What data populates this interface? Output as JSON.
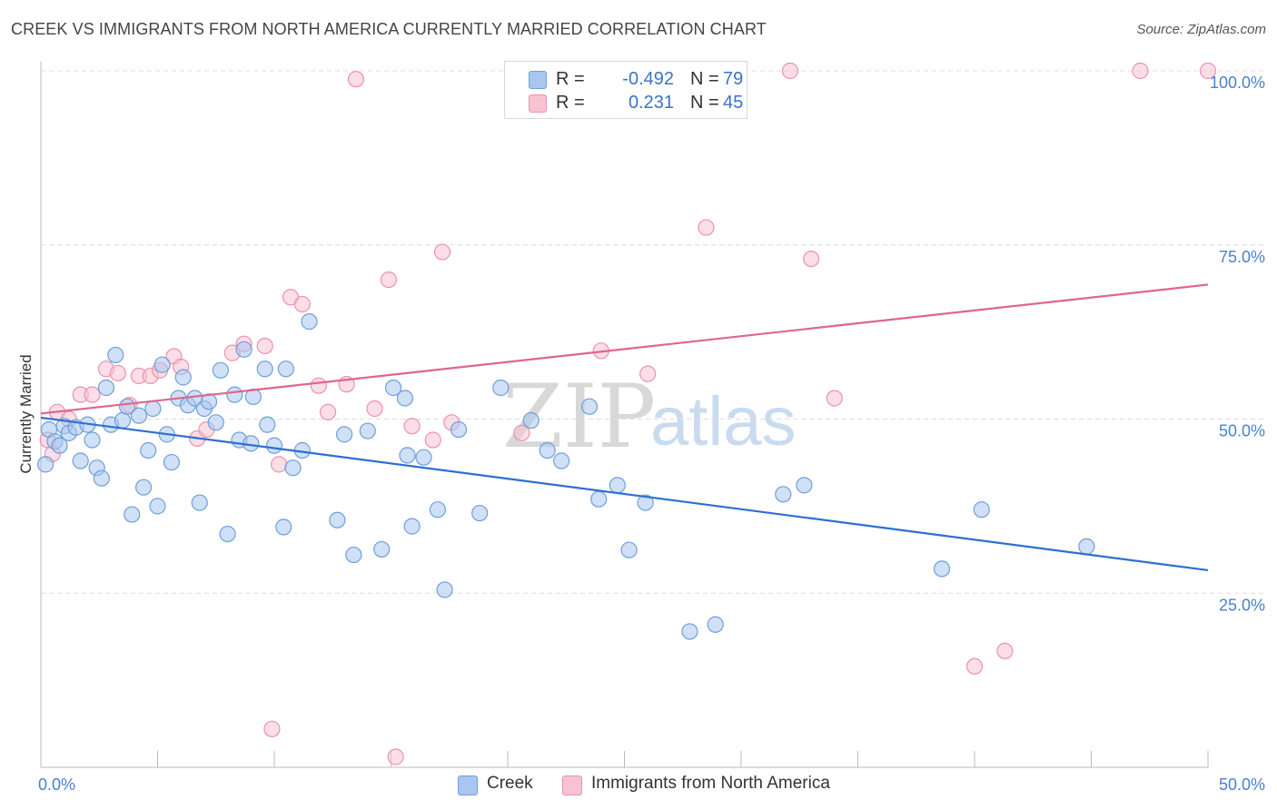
{
  "title": "CREEK VS IMMIGRANTS FROM NORTH AMERICA CURRENTLY MARRIED CORRELATION CHART",
  "source": "Source: ZipAtlas.com",
  "legend": {
    "rows": [
      {
        "r_label": "R =",
        "r_value": "-0.492",
        "n_label": "N =",
        "n_value": "79"
      },
      {
        "r_label": "R =",
        "r_value": "0.231",
        "n_label": "N =",
        "n_value": "45"
      }
    ]
  },
  "bottom_legend": [
    "Creek",
    "Immigrants from North America"
  ],
  "watermark": {
    "zip": "ZIP",
    "atlas": "atlas"
  },
  "colors": {
    "creek_fill": "#a9c6ef",
    "creek_stroke": "#6f9fdc",
    "creek_line": "#2c6fd1",
    "imm_fill": "#f7c3d2",
    "imm_stroke": "#ec92ad",
    "imm_line": "#e0658d",
    "grid": "#dddddd",
    "axis_label": "#4a7fd0"
  },
  "chart_data": {
    "type": "scatter",
    "title": "CREEK VS IMMIGRANTS FROM NORTH AMERICA CURRENTLY MARRIED CORRELATION CHART",
    "xlabel": "",
    "ylabel": "Currently Married",
    "xlim": [
      0,
      50
    ],
    "ylim": [
      0,
      100
    ],
    "x_tick_labels": [
      "0.0%",
      "50.0%"
    ],
    "y_tick_labels": [
      "25.0%",
      "50.0%",
      "75.0%",
      "100.0%"
    ],
    "y_ticks": [
      25,
      50,
      75,
      100
    ],
    "grid": true,
    "legend_position": "top-center",
    "series": [
      {
        "name": "Creek",
        "r": -0.492,
        "n": 79,
        "trend": {
          "x0": 0,
          "y0": 50.2,
          "x1": 50,
          "y1": 28.3
        },
        "points": [
          [
            0.2,
            43.5
          ],
          [
            0.35,
            48.5
          ],
          [
            0.6,
            46.8
          ],
          [
            0.8,
            46.2
          ],
          [
            1.0,
            49.0
          ],
          [
            1.2,
            48.0
          ],
          [
            1.5,
            48.8
          ],
          [
            1.7,
            44.0
          ],
          [
            2.0,
            49.2
          ],
          [
            2.2,
            47.0
          ],
          [
            2.4,
            43.0
          ],
          [
            2.6,
            41.5
          ],
          [
            2.8,
            54.5
          ],
          [
            3.0,
            49.2
          ],
          [
            3.2,
            59.2
          ],
          [
            3.5,
            49.8
          ],
          [
            3.7,
            51.8
          ],
          [
            3.9,
            36.3
          ],
          [
            4.2,
            50.5
          ],
          [
            4.4,
            40.2
          ],
          [
            4.6,
            45.5
          ],
          [
            4.8,
            51.5
          ],
          [
            5.0,
            37.5
          ],
          [
            5.2,
            57.8
          ],
          [
            5.4,
            47.8
          ],
          [
            5.6,
            43.8
          ],
          [
            5.9,
            53.0
          ],
          [
            6.1,
            56.0
          ],
          [
            6.3,
            52.0
          ],
          [
            6.6,
            53.0
          ],
          [
            6.8,
            38.0
          ],
          [
            7.0,
            51.5
          ],
          [
            7.2,
            52.5
          ],
          [
            7.5,
            49.5
          ],
          [
            7.7,
            57.0
          ],
          [
            8.0,
            33.5
          ],
          [
            8.3,
            53.5
          ],
          [
            8.5,
            47.0
          ],
          [
            8.7,
            60.0
          ],
          [
            9.0,
            46.5
          ],
          [
            9.1,
            53.2
          ],
          [
            9.6,
            57.2
          ],
          [
            9.7,
            49.2
          ],
          [
            10.0,
            46.2
          ],
          [
            10.4,
            34.5
          ],
          [
            10.5,
            57.2
          ],
          [
            10.8,
            43.0
          ],
          [
            11.2,
            45.5
          ],
          [
            11.5,
            64.0
          ],
          [
            12.7,
            35.5
          ],
          [
            13.0,
            47.8
          ],
          [
            13.4,
            30.5
          ],
          [
            14.0,
            48.3
          ],
          [
            14.6,
            31.3
          ],
          [
            15.1,
            54.5
          ],
          [
            15.6,
            53.0
          ],
          [
            15.7,
            44.8
          ],
          [
            15.9,
            34.6
          ],
          [
            17.0,
            37.0
          ],
          [
            17.9,
            48.5
          ],
          [
            17.3,
            25.5
          ],
          [
            18.8,
            36.5
          ],
          [
            19.7,
            54.5
          ],
          [
            21.0,
            49.8
          ],
          [
            21.7,
            45.5
          ],
          [
            22.3,
            44.0
          ],
          [
            23.5,
            51.8
          ],
          [
            23.9,
            38.5
          ],
          [
            24.7,
            40.5
          ],
          [
            25.2,
            31.2
          ],
          [
            25.9,
            38.0
          ],
          [
            27.8,
            19.5
          ],
          [
            28.9,
            20.5
          ],
          [
            31.8,
            39.2
          ],
          [
            32.7,
            40.5
          ],
          [
            38.6,
            28.5
          ],
          [
            40.3,
            37.0
          ],
          [
            44.8,
            31.7
          ],
          [
            16.4,
            44.5
          ]
        ]
      },
      {
        "name": "Immigrants from North America",
        "r": 0.231,
        "n": 45,
        "trend": {
          "x0": 0,
          "y0": 50.8,
          "x1": 50,
          "y1": 69.3
        },
        "points": [
          [
            0.3,
            47.0
          ],
          [
            0.5,
            45.0
          ],
          [
            0.7,
            51.0
          ],
          [
            1.2,
            50.0
          ],
          [
            1.7,
            53.5
          ],
          [
            2.2,
            53.5
          ],
          [
            2.8,
            57.2
          ],
          [
            3.3,
            56.6
          ],
          [
            3.8,
            52.0
          ],
          [
            4.2,
            56.2
          ],
          [
            4.7,
            56.2
          ],
          [
            5.1,
            57.0
          ],
          [
            5.7,
            59.0
          ],
          [
            6.0,
            57.5
          ],
          [
            6.7,
            47.2
          ],
          [
            7.1,
            48.5
          ],
          [
            8.2,
            59.5
          ],
          [
            8.7,
            60.8
          ],
          [
            9.6,
            60.5
          ],
          [
            9.9,
            5.5
          ],
          [
            10.2,
            43.5
          ],
          [
            10.7,
            67.5
          ],
          [
            11.2,
            66.5
          ],
          [
            11.9,
            54.8
          ],
          [
            12.3,
            51.0
          ],
          [
            13.1,
            55.0
          ],
          [
            13.5,
            98.8
          ],
          [
            14.3,
            51.5
          ],
          [
            14.9,
            70.0
          ],
          [
            15.2,
            1.5
          ],
          [
            15.9,
            49.0
          ],
          [
            16.8,
            47.0
          ],
          [
            17.2,
            74.0
          ],
          [
            17.6,
            49.5
          ],
          [
            20.6,
            48.0
          ],
          [
            24.0,
            59.8
          ],
          [
            26.0,
            56.5
          ],
          [
            28.5,
            77.5
          ],
          [
            32.1,
            100.0
          ],
          [
            33.0,
            73.0
          ],
          [
            34.0,
            53.0
          ],
          [
            40.0,
            14.5
          ],
          [
            41.3,
            16.7
          ],
          [
            47.1,
            100.0
          ],
          [
            50.0,
            100.0
          ]
        ]
      }
    ]
  }
}
